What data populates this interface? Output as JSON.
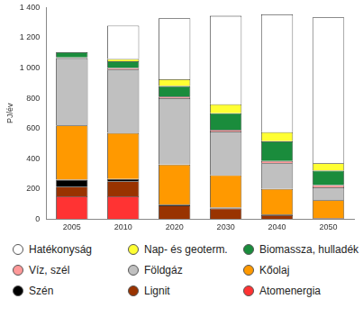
{
  "chart_data": {
    "type": "bar",
    "stacked": true,
    "y_label": "PJ/év",
    "categories": [
      "2005",
      "2010",
      "2020",
      "2030",
      "2040",
      "2050"
    ],
    "series": [
      {
        "name": "Atomenergia",
        "color": "#ff3333",
        "values": [
          150,
          150,
          0,
          0,
          0,
          0
        ]
      },
      {
        "name": "Lignit",
        "color": "#993300",
        "values": [
          65,
          100,
          90,
          70,
          25,
          5
        ]
      },
      {
        "name": "Szén",
        "color": "#000000",
        "values": [
          45,
          15,
          5,
          5,
          5,
          0
        ]
      },
      {
        "name": "Kőolaj",
        "color": "#ff9900",
        "values": [
          360,
          305,
          265,
          215,
          170,
          120
        ]
      },
      {
        "name": "Földgáz",
        "color": "#c0c0c0",
        "values": [
          445,
          420,
          440,
          290,
          170,
          85
        ]
      },
      {
        "name": "Víz, szél",
        "color": "#ff9999",
        "values": [
          5,
          10,
          10,
          10,
          15,
          15
        ]
      },
      {
        "name": "Biomassza, hulladék",
        "color": "#1a8c3c",
        "values": [
          35,
          45,
          70,
          110,
          130,
          95
        ]
      },
      {
        "name": "Nap- és geoterm.",
        "color": "#ffff33",
        "values": [
          0,
          15,
          45,
          60,
          60,
          50
        ]
      },
      {
        "name": "Hatékonyság",
        "color": "#ffffff",
        "values": [
          0,
          220,
          405,
          585,
          780,
          965
        ]
      }
    ],
    "ylim": [
      0,
      1400
    ],
    "yticks": [
      0,
      200,
      400,
      600,
      800,
      {
        "value": 1000,
        "label": "1 000"
      },
      {
        "value": 1200,
        "label": "1 200"
      },
      {
        "value": 1400,
        "label": "1 400"
      }
    ],
    "grid": false,
    "legend": "bottom"
  }
}
